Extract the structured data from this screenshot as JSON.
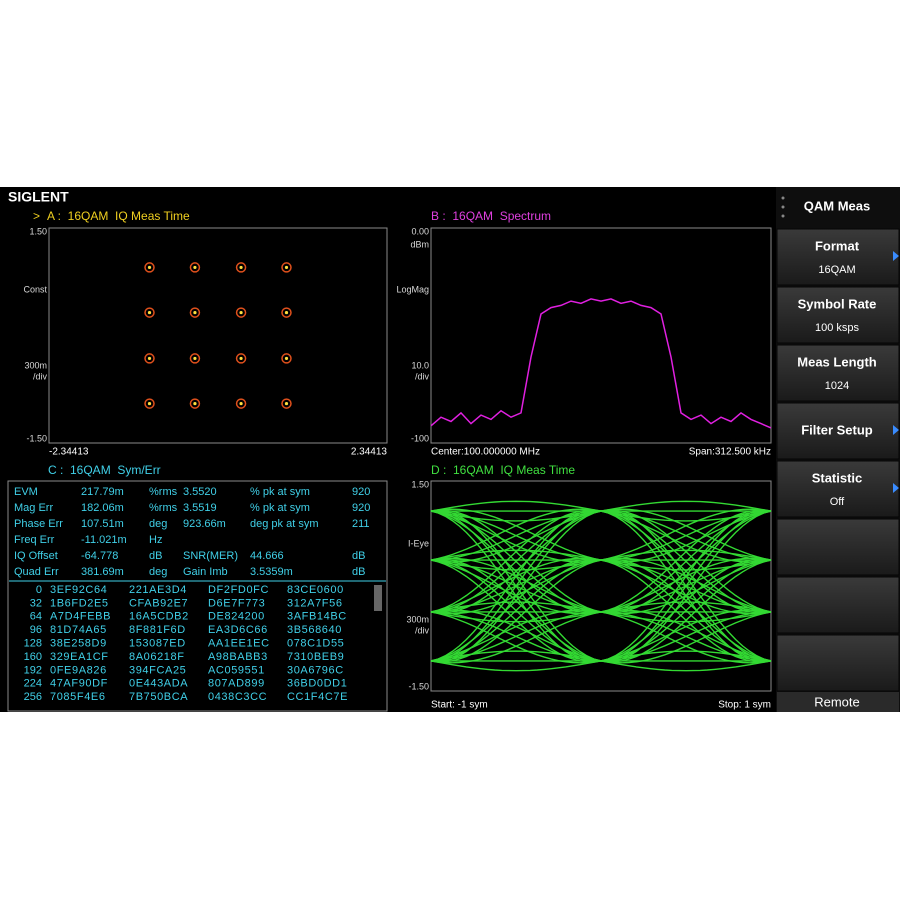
{
  "brand": "SIGLENT",
  "panel_a": {
    "marker": ">",
    "title": "A :  16QAM  IQ Meas Time",
    "format_label": "Const",
    "scale_label": [
      "300m",
      "/div"
    ],
    "xlim": [
      -2.34413,
      2.34413
    ],
    "xticks": [
      -2.34413,
      2.34413
    ],
    "ylim": [
      -1.5,
      1.5
    ],
    "yticks": [
      {
        "value": -1.5,
        "label": "-1.50"
      },
      {
        "value": 1.5,
        "label": "1.50"
      }
    ],
    "levels": [
      -0.95,
      -0.32,
      0.32,
      0.95
    ]
  },
  "panel_b": {
    "title": "B :  16QAM  Spectrum",
    "unit": "dBm",
    "format_label": "LogMag",
    "scale_label": [
      "10.0",
      "/div"
    ],
    "ylim": [
      -100,
      0
    ],
    "yticks": [
      {
        "value": 0,
        "label": "0.00"
      },
      -100
    ],
    "center": "Center:100.000000 MHz",
    "span": "Span:312.500 kHz",
    "trace": [
      -92,
      -88,
      -90,
      -86,
      -91,
      -87,
      -89,
      -85,
      -88,
      -86,
      -60,
      -40,
      -37,
      -36,
      -34,
      -35,
      -33,
      -34,
      -33,
      -35,
      -34,
      -36,
      -37,
      -40,
      -60,
      -86,
      -89,
      -87,
      -91,
      -88,
      -90,
      -86,
      -89,
      -91,
      -93
    ]
  },
  "panel_c": {
    "title": "C :  16QAM  Sym/Err",
    "metrics": [
      [
        "EVM",
        "217.79m",
        "%rms",
        "3.5520",
        "% pk at sym",
        "920"
      ],
      [
        "Mag Err",
        "182.06m",
        "%rms",
        "3.5519",
        "% pk at sym",
        "920"
      ],
      [
        "Phase Err",
        "107.51m",
        "deg",
        "923.66m",
        "deg pk at sym",
        "211"
      ],
      [
        "Freq Err",
        "-11.021m",
        "Hz"
      ],
      [
        "IQ Offset",
        "-64.778",
        "dB",
        "SNR(MER)",
        "44.666",
        "dB"
      ],
      [
        "Quad Err",
        "381.69m",
        "deg",
        "Gain Imb",
        "3.5359m",
        "dB"
      ]
    ],
    "symbols": [
      [
        "0",
        "3EF92C64",
        "221AE3D4",
        "DF2FD0FC",
        "83CE0600"
      ],
      [
        "32",
        "1B6FD2E5",
        "CFAB92E7",
        "D6E7F773",
        "312A7F56"
      ],
      [
        "64",
        "A7D4FEBB",
        "16A5CDB2",
        "DE824200",
        "3AFB14BC"
      ],
      [
        "96",
        "81D74A65",
        "8F881F6D",
        "EA3D6C66",
        "3B568640"
      ],
      [
        "128",
        "38E258D9",
        "153087ED",
        "AA1EE1EC",
        "078C1D55"
      ],
      [
        "160",
        "329EA1CF",
        "8A06218F",
        "A98BABB3",
        "7310BEB9"
      ],
      [
        "192",
        "0FE9A826",
        "394FCA25",
        "AC059551",
        "30A6796C"
      ],
      [
        "224",
        "47AF90DF",
        "0E443ADA",
        "807AD899",
        "36BD0DD1"
      ],
      [
        "256",
        "7085F4E6",
        "7B750BCA",
        "0438C3CC",
        "CC1F4C7E"
      ]
    ]
  },
  "panel_d": {
    "title": "D :  16QAM  IQ Meas Time",
    "format_label": "I-Eye",
    "scale_label": [
      "300m",
      "/div"
    ],
    "ylim": [
      -1.5,
      1.5
    ],
    "yticks": [
      {
        "value": -1.5,
        "label": "-1.50"
      },
      {
        "value": 1.5,
        "label": "1.50"
      }
    ],
    "levels": [
      -1.07,
      -0.37,
      0.37,
      1.07
    ],
    "start": "Start: -1 sym",
    "stop": "Stop: 1 sym"
  },
  "menu": {
    "title": "QAM Meas",
    "items": [
      {
        "label": "Format",
        "value": "16QAM",
        "submenu": true
      },
      {
        "label": "Symbol Rate",
        "value": "100 ksps",
        "submenu": false
      },
      {
        "label": "Meas Length",
        "value": "1024",
        "submenu": false
      },
      {
        "label": "Filter Setup",
        "submenu": true
      },
      {
        "label": "Statistic",
        "value": "Off",
        "submenu": true
      }
    ],
    "status": "Remote"
  }
}
